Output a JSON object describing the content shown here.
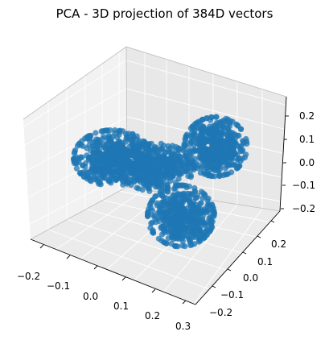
{
  "chart_data": {
    "type": "scatter",
    "projection": "3d",
    "title": "PCA - 3D projection of 384D vectors",
    "xlabel": "",
    "ylabel": "",
    "zlabel": "",
    "grid": true,
    "marker_color": "#1f77b4",
    "x_ticks": [
      "−0.2",
      "−0.1",
      "0.0",
      "0.1",
      "0.2",
      "0.3"
    ],
    "y_ticks": [
      "−0.2",
      "−0.1",
      "0.0",
      "0.1",
      "0.2"
    ],
    "z_ticks": [
      "−0.2",
      "−0.1",
      "0.0",
      "0.1",
      "0.2"
    ],
    "xlim": [
      -0.22,
      0.31
    ],
    "ylim": [
      -0.26,
      0.26
    ],
    "zlim": [
      -0.22,
      0.25
    ],
    "clusters": [
      {
        "name": "upper-right lobe",
        "x": 0.2,
        "y": 0.12,
        "z": 0.22
      },
      {
        "name": "left lobe",
        "x": -0.19,
        "y": 0.04,
        "z": 0.02
      },
      {
        "name": "lower lobe",
        "x": 0.08,
        "y": -0.12,
        "z": -0.12
      }
    ]
  }
}
